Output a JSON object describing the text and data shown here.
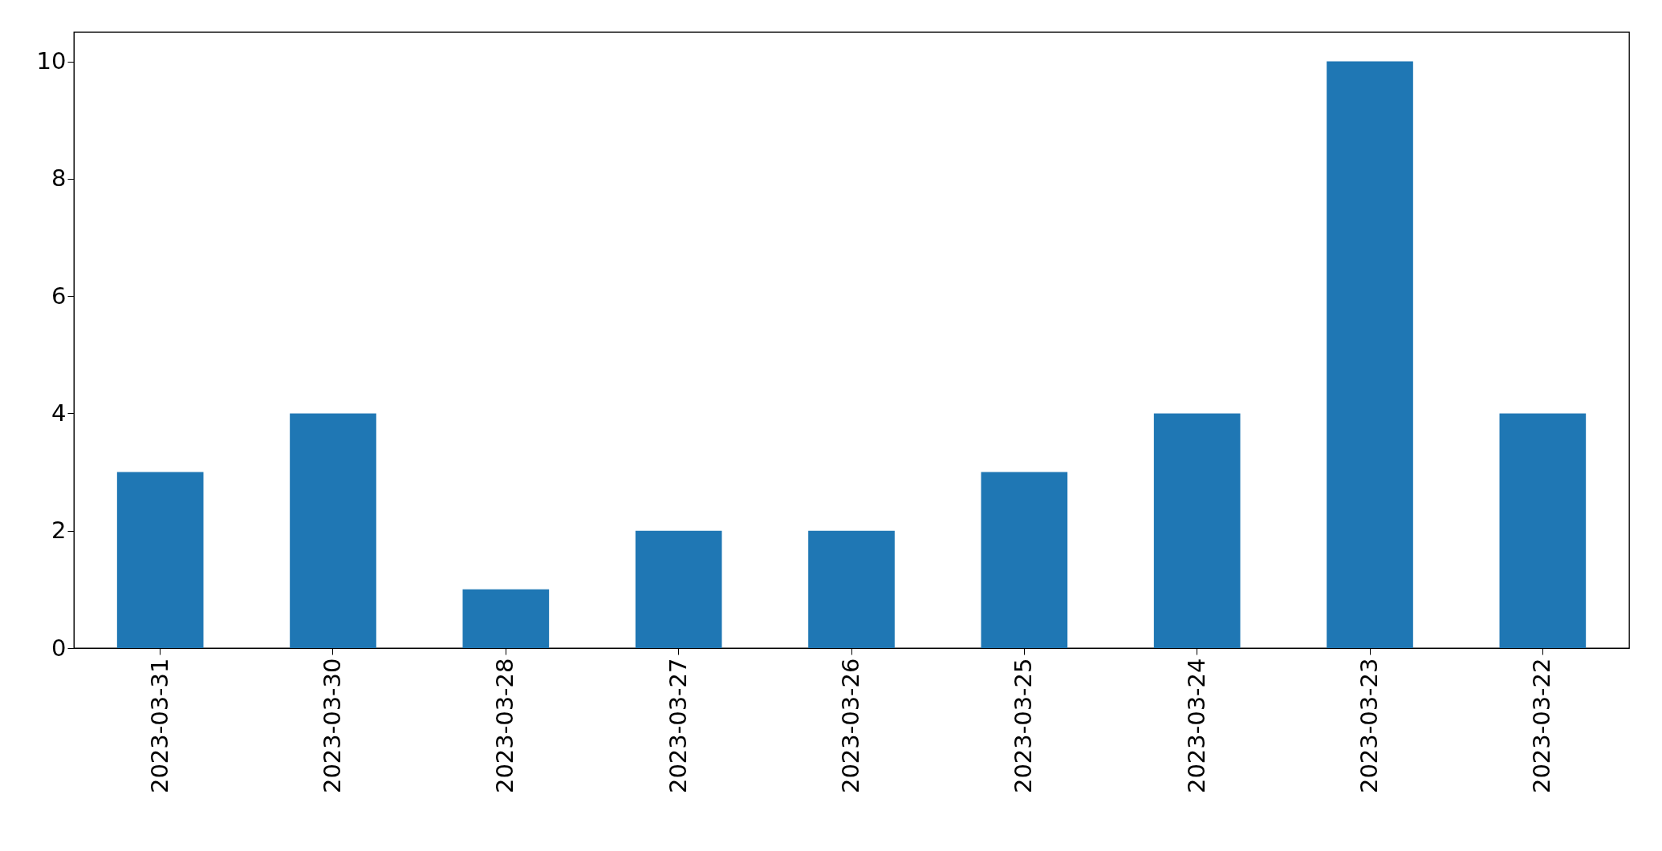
{
  "chart_data": {
    "type": "bar",
    "categories": [
      "2023-03-31",
      "2023-03-30",
      "2023-03-28",
      "2023-03-27",
      "2023-03-26",
      "2023-03-25",
      "2023-03-24",
      "2023-03-23",
      "2023-03-22"
    ],
    "values": [
      3,
      4,
      1,
      2,
      2,
      3,
      4,
      10,
      4
    ],
    "color": "#1f77b4",
    "ylim": [
      0,
      10.5
    ],
    "yticks": [
      0,
      2,
      4,
      6,
      8,
      10
    ],
    "grid": false
  }
}
